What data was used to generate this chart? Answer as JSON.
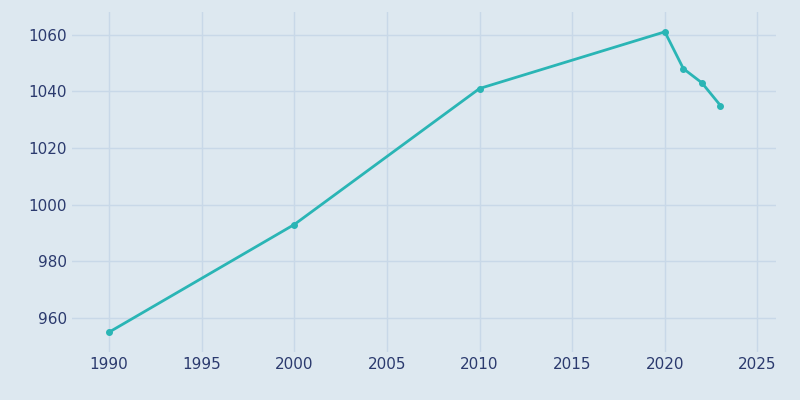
{
  "years": [
    1990,
    2000,
    2010,
    2020,
    2021,
    2022,
    2023
  ],
  "population": [
    955,
    993,
    1041,
    1061,
    1048,
    1043,
    1035
  ],
  "line_color": "#2ab5b5",
  "marker": "o",
  "marker_size": 4,
  "line_width": 2,
  "background_color": "#dde8f0",
  "plot_bg_color": "#dde8f0",
  "grid_color": "#c8d8e8",
  "tick_color": "#2b3a6e",
  "xlim": [
    1988,
    2026
  ],
  "ylim": [
    948,
    1068
  ],
  "xticks": [
    1990,
    1995,
    2000,
    2005,
    2010,
    2015,
    2020,
    2025
  ],
  "yticks": [
    960,
    980,
    1000,
    1020,
    1040,
    1060
  ],
  "title": "",
  "title_color": "#2b3a6e",
  "title_fontsize": 13
}
